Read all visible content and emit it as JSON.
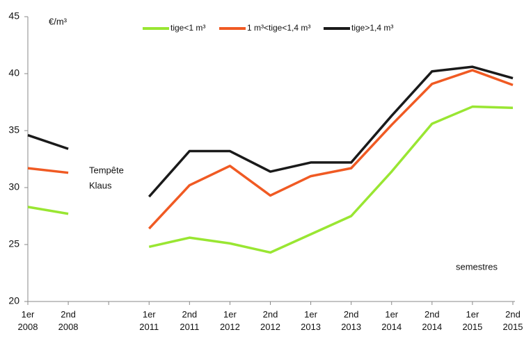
{
  "chart_data": {
    "type": "line",
    "y_label": "€/m³",
    "x_label": "semestres",
    "annotation": [
      "Tempête",
      "Klaus"
    ],
    "categories": [
      "1er 2008",
      "2nd 2008",
      null,
      "1er 2011",
      "2nd 2011",
      "1er 2012",
      "2nd 2012",
      "1er 2013",
      "2nd 2013",
      "1er 2014",
      "2nd 2014",
      "1er 2015",
      "2nd 2015"
    ],
    "series": [
      {
        "name": "tige<1 m³",
        "color": "#99e632",
        "values": [
          28.3,
          27.7,
          null,
          24.8,
          25.6,
          25.1,
          24.3,
          25.9,
          27.5,
          31.4,
          35.6,
          37.1,
          37.0
        ]
      },
      {
        "name": "1 m³<tige<1,4 m³",
        "color": "#f05a23",
        "values": [
          31.7,
          31.3,
          null,
          26.4,
          30.2,
          31.9,
          29.3,
          31.0,
          31.7,
          35.5,
          39.1,
          40.3,
          39.0
        ]
      },
      {
        "name": "tige>1,4 m³",
        "color": "#1a1a1a",
        "values": [
          34.6,
          33.4,
          null,
          29.2,
          33.2,
          33.2,
          31.4,
          32.2,
          32.2,
          36.3,
          40.2,
          40.6,
          39.6
        ]
      }
    ],
    "ylim": [
      20,
      45
    ],
    "yticks": [
      20,
      25,
      30,
      35,
      40,
      45
    ],
    "grid": false
  }
}
